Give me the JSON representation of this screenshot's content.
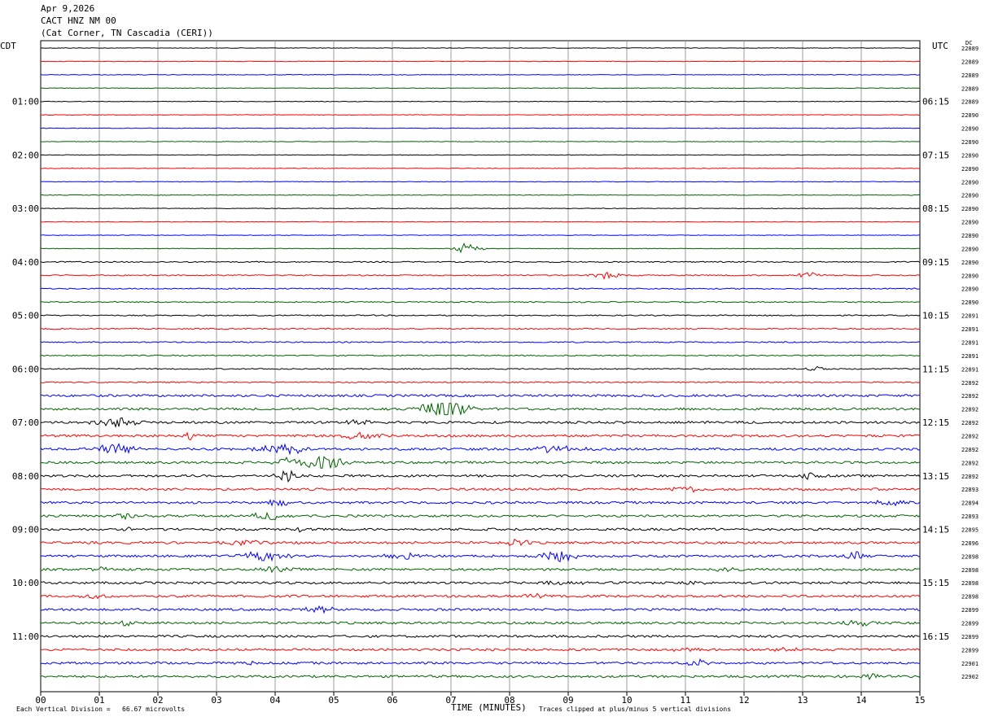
{
  "header": {
    "date": "Apr 9,2026",
    "station": "CACT HNZ NM 00",
    "location": "(Cat Corner, TN Cascadia (CERI))"
  },
  "labels": {
    "left_timezone": "CDT",
    "right_timezone": "UTC",
    "dc_header": "DC",
    "x_title": "TIME (MINUTES)",
    "scale_note": "Each Vertical Division =   66.67 microvolts",
    "clip_note": "Traces clipped at plus/minus 5 vertical divisions"
  },
  "chart_data": {
    "type": "line",
    "title": "",
    "xlabel": "TIME (MINUTES)",
    "xlim": [
      0,
      15
    ],
    "x_ticks": [
      "00",
      "01",
      "02",
      "03",
      "04",
      "05",
      "06",
      "07",
      "08",
      "09",
      "10",
      "11",
      "12",
      "13",
      "14",
      "15"
    ],
    "trace_colors": [
      "#000000",
      "#ff0000",
      "#0000ff",
      "#006400"
    ],
    "trace_count": 48,
    "minutes_per_trace": 15,
    "left_hour_labels": [
      "01:00",
      "02:00",
      "03:00",
      "04:00",
      "05:00",
      "06:00",
      "07:00",
      "08:00",
      "09:00",
      "10:00",
      "11:00"
    ],
    "right_hour_labels": [
      "06:15",
      "07:15",
      "08:15",
      "09:15",
      "10:15",
      "11:15",
      "12:15",
      "13:15",
      "14:15",
      "15:15",
      "16:15"
    ],
    "dc_offsets": [
      "22889",
      "22889",
      "22889",
      "22889",
      "22889",
      "22890",
      "22890",
      "22890",
      "22890",
      "22890",
      "22890",
      "22890",
      "22890",
      "22890",
      "22890",
      "22890",
      "22890",
      "22890",
      "22890",
      "22890",
      "22891",
      "22891",
      "22891",
      "22891",
      "22891",
      "22892",
      "22892",
      "22892",
      "22892",
      "22892",
      "22892",
      "22892",
      "22892",
      "22893",
      "22894",
      "22893",
      "22895",
      "22896",
      "22898",
      "22898",
      "22898",
      "22898",
      "22899",
      "22899",
      "22899",
      "22899",
      "22901",
      "22902"
    ]
  }
}
